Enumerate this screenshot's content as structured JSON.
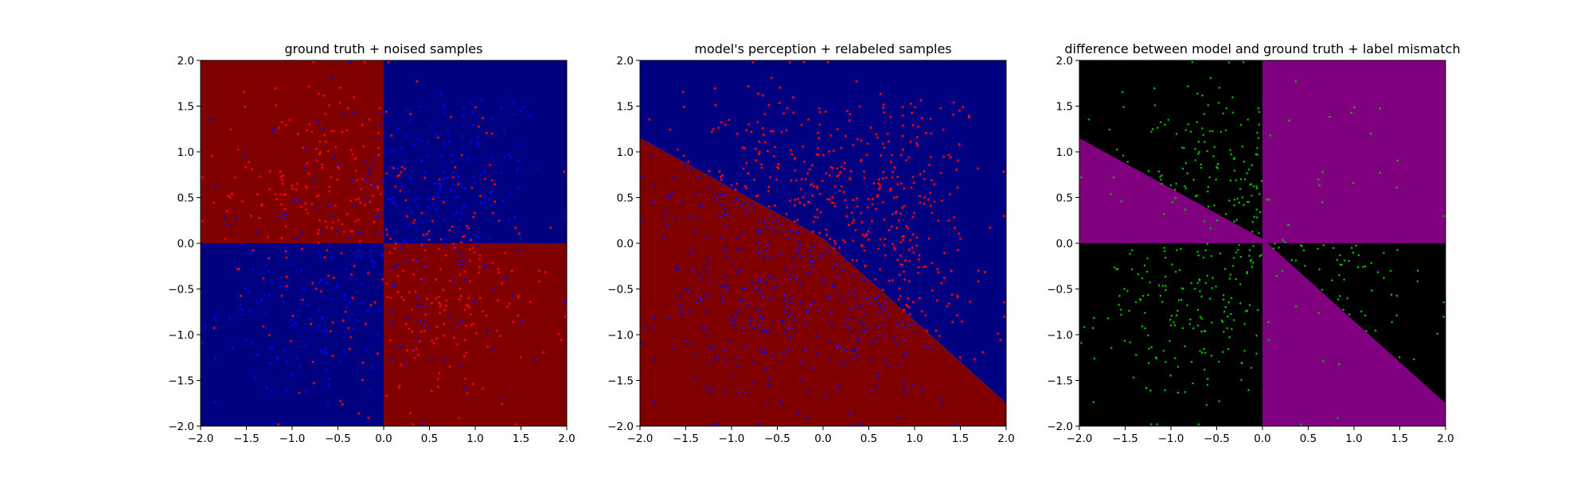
{
  "colors": {
    "red_region": "#800000",
    "blue_region": "#000080",
    "black_region": "#000000",
    "purple_region": "#800080",
    "red_point": "#ff0000",
    "blue_point": "#0000ff",
    "green_point": "#00c000"
  },
  "chart_data": [
    {
      "type": "scatter",
      "title": "ground truth + noised samples",
      "xlabel": "",
      "ylabel": "",
      "xlim": [
        -2.0,
        2.0
      ],
      "ylim": [
        -2.0,
        2.0
      ],
      "xticks": [
        "−2.0",
        "−1.5",
        "−1.0",
        "−0.5",
        "0.0",
        "0.5",
        "1.0",
        "1.5",
        "2.0"
      ],
      "yticks": [
        "−2.0",
        "−1.5",
        "−1.0",
        "−0.5",
        "0.0",
        "0.5",
        "1.0",
        "1.5",
        "2.0"
      ],
      "grid": false,
      "background_regions": "quadrants: x*y>0 dark red, x*y<0 dark blue",
      "point_count_per_quadrant": 200,
      "point_size": 2.5
    },
    {
      "type": "scatter",
      "title": "model's perception + relabeled samples",
      "xlabel": "",
      "ylabel": "",
      "xlim": [
        -2.0,
        2.0
      ],
      "ylim": [
        -2.0,
        2.0
      ],
      "xticks": [
        "−2.0",
        "−1.5",
        "−1.0",
        "−0.5",
        "0.0",
        "0.5",
        "1.0",
        "1.5",
        "2.0"
      ],
      "yticks": [
        "−2.0",
        "−1.5",
        "−1.0",
        "−0.5",
        "0.0",
        "0.5",
        "1.0",
        "1.5",
        "2.0"
      ],
      "grid": false,
      "boundary_line": {
        "x": [
          -2.0,
          0.0,
          2.0
        ],
        "y": [
          1.15,
          0.05,
          -1.75
        ]
      },
      "background_regions": "below boundary dark red, above boundary dark blue",
      "point_count_per_quadrant": 200,
      "point_size": 2.5
    },
    {
      "type": "scatter",
      "title": "difference between model and ground truth + label mismatch",
      "xlabel": "",
      "ylabel": "",
      "xlim": [
        -2.0,
        2.0
      ],
      "ylim": [
        -2.0,
        2.0
      ],
      "xticks": [
        "−2.0",
        "−1.5",
        "−1.0",
        "−0.5",
        "0.0",
        "0.5",
        "1.0",
        "1.5",
        "2.0"
      ],
      "yticks": [
        "−2.0",
        "−1.5",
        "−1.0",
        "−0.5",
        "0.0",
        "0.5",
        "1.0",
        "1.5",
        "2.0"
      ],
      "grid": false,
      "background_regions": "purple where model and ground truth disagree, black where they agree",
      "point_count": 420,
      "point_size": 2.5
    }
  ]
}
